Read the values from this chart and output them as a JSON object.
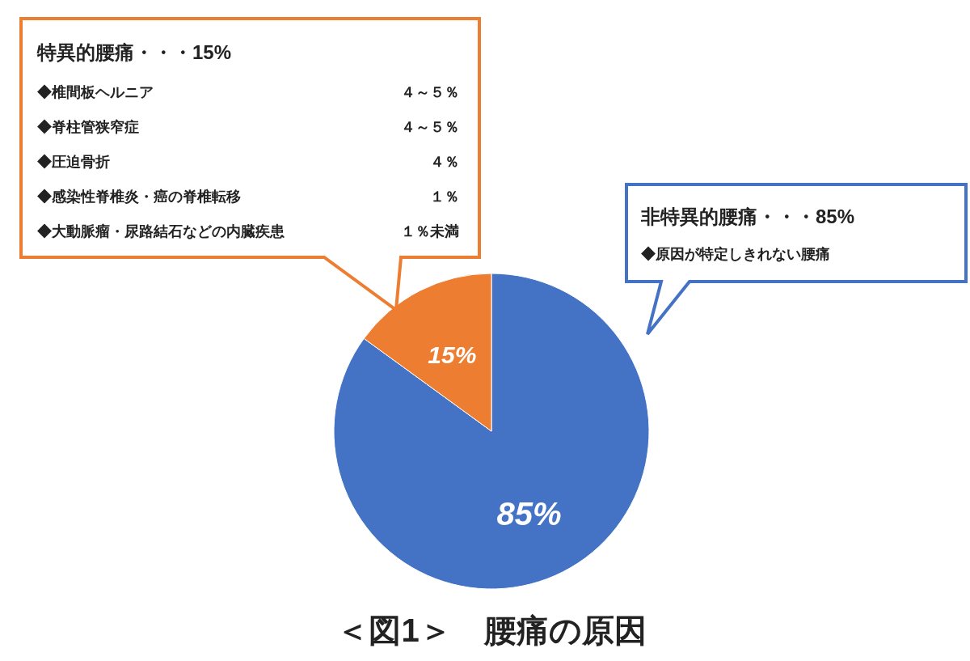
{
  "chart_data": {
    "type": "pie",
    "title": "＜図1＞　腰痛の原因",
    "categories": [
      null,
      null
    ],
    "values": [
      85,
      15
    ],
    "colors": [
      "#4472c4",
      "#ed7d31"
    ],
    "value_labels": [
      "85%",
      "15%"
    ],
    "annotations": [
      "特異的腰痛・・・15%",
      "◆椎間板ヘルニア",
      "４～５％",
      "◆脊柱管狭窄症",
      "４～５％",
      "◆圧迫骨折",
      "４％",
      "◆感染性脊椎炎・癌の脊椎転移",
      "１％",
      "◆大動脈瘤・尿路結石などの内臓疾患",
      "１％未満",
      "非特異的腰痛・・・85%",
      "◆原因が特定しきれない腰痛"
    ]
  }
}
